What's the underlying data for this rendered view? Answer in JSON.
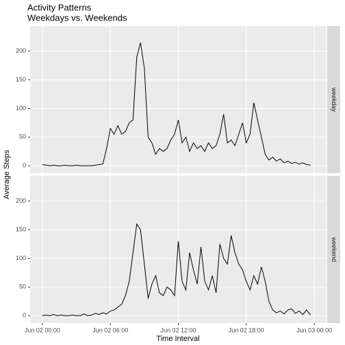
{
  "chart_data": {
    "type": "line",
    "title": "Activity Patterns",
    "subtitle": "Weekdays vs. Weekends",
    "x_label": "Time Interval",
    "y_label": "Average Steps",
    "x": [
      "Jun 02 00:00",
      "Jun 02 00:20",
      "Jun 02 00:40",
      "Jun 02 01:00",
      "Jun 02 01:20",
      "Jun 02 01:40",
      "Jun 02 02:00",
      "Jun 02 02:20",
      "Jun 02 02:40",
      "Jun 02 03:00",
      "Jun 02 03:20",
      "Jun 02 03:40",
      "Jun 02 04:00",
      "Jun 02 04:20",
      "Jun 02 04:40",
      "Jun 02 05:00",
      "Jun 02 05:20",
      "Jun 02 05:40",
      "Jun 02 06:00",
      "Jun 02 06:20",
      "Jun 02 06:40",
      "Jun 02 07:00",
      "Jun 02 07:20",
      "Jun 02 07:40",
      "Jun 02 08:00",
      "Jun 02 08:20",
      "Jun 02 08:40",
      "Jun 02 09:00",
      "Jun 02 09:20",
      "Jun 02 09:40",
      "Jun 02 10:00",
      "Jun 02 10:20",
      "Jun 02 10:40",
      "Jun 02 11:00",
      "Jun 02 11:20",
      "Jun 02 11:40",
      "Jun 02 12:00",
      "Jun 02 12:20",
      "Jun 02 12:40",
      "Jun 02 13:00",
      "Jun 02 13:20",
      "Jun 02 13:40",
      "Jun 02 14:00",
      "Jun 02 14:20",
      "Jun 02 14:40",
      "Jun 02 15:00",
      "Jun 02 15:20",
      "Jun 02 15:40",
      "Jun 02 16:00",
      "Jun 02 16:20",
      "Jun 02 16:40",
      "Jun 02 17:00",
      "Jun 02 17:20",
      "Jun 02 17:40",
      "Jun 02 18:00",
      "Jun 02 18:20",
      "Jun 02 18:40",
      "Jun 02 19:00",
      "Jun 02 19:20",
      "Jun 02 19:40",
      "Jun 02 20:00",
      "Jun 02 20:20",
      "Jun 02 20:40",
      "Jun 02 21:00",
      "Jun 02 21:20",
      "Jun 02 21:40",
      "Jun 02 22:00",
      "Jun 02 22:20",
      "Jun 02 22:40",
      "Jun 02 23:00",
      "Jun 02 23:20",
      "Jun 02 23:40"
    ],
    "xlim": [
      "Jun 01 22:55",
      "Jun 03 01:05"
    ],
    "xticks": [
      "Jun 02 00:00",
      "Jun 02 06:00",
      "Jun 02 12:00",
      "Jun 02 18:00",
      "Jun 03 00:00"
    ],
    "ylim": [
      -13,
      244
    ],
    "yticks": [
      0,
      50,
      100,
      150,
      200
    ],
    "grid": true,
    "series": [
      {
        "name": "weekday",
        "color": "#000000",
        "values": [
          2,
          1,
          0,
          1,
          0,
          0,
          1,
          0,
          0,
          1,
          0,
          0,
          0,
          0,
          1,
          2,
          3,
          30,
          65,
          55,
          70,
          55,
          60,
          75,
          80,
          190,
          215,
          170,
          50,
          40,
          20,
          30,
          25,
          30,
          45,
          55,
          80,
          40,
          50,
          25,
          40,
          30,
          35,
          25,
          40,
          30,
          35,
          55,
          90,
          40,
          45,
          35,
          55,
          75,
          40,
          55,
          110,
          80,
          50,
          20,
          10,
          15,
          8,
          12,
          5,
          8,
          4,
          6,
          3,
          5,
          2,
          1
        ]
      },
      {
        "name": "weekend",
        "color": "#000000",
        "values": [
          0,
          1,
          0,
          2,
          0,
          1,
          0,
          0,
          1,
          0,
          0,
          3,
          0,
          1,
          4,
          2,
          5,
          3,
          8,
          10,
          15,
          20,
          35,
          60,
          110,
          160,
          150,
          90,
          30,
          55,
          70,
          40,
          35,
          50,
          45,
          35,
          130,
          60,
          45,
          110,
          80,
          55,
          120,
          60,
          45,
          70,
          40,
          125,
          100,
          90,
          140,
          110,
          90,
          80,
          60,
          45,
          70,
          55,
          85,
          60,
          25,
          10,
          5,
          8,
          3,
          10,
          12,
          4,
          8,
          2,
          10,
          1
        ]
      }
    ]
  }
}
